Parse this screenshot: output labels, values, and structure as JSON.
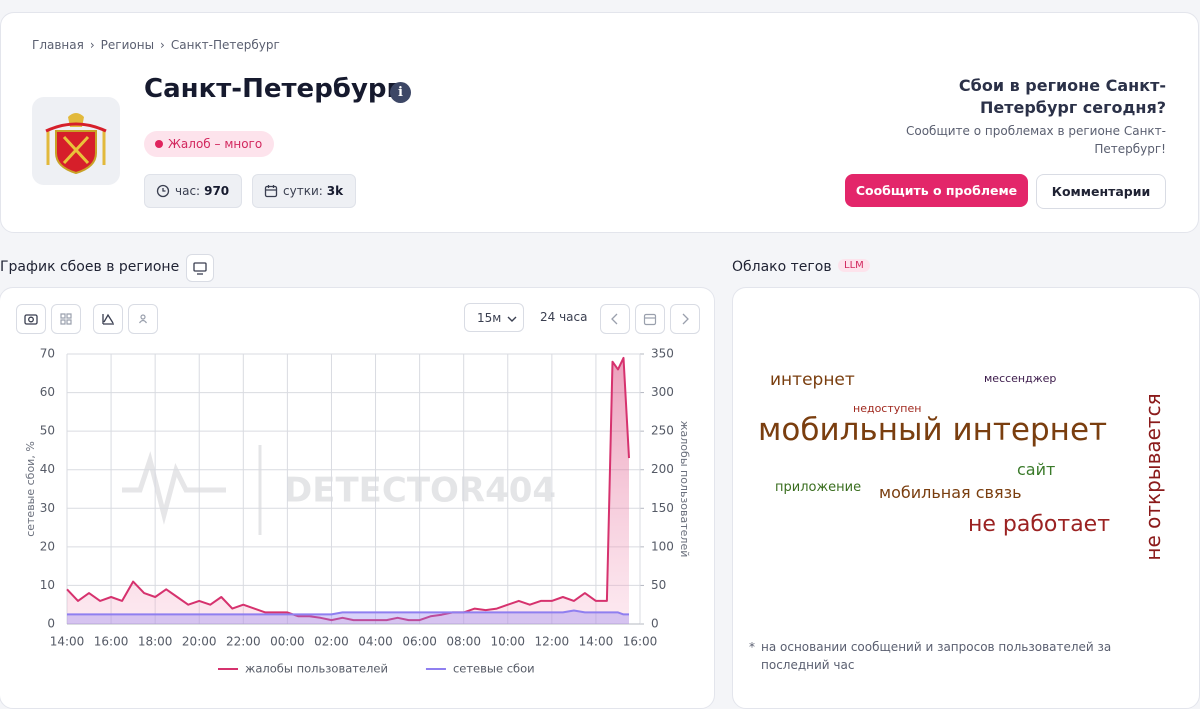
{
  "breadcrumbs": [
    "Главная",
    "Регионы",
    "Санкт-Петербург"
  ],
  "header": {
    "title": "Санкт-Петербург",
    "status": "Жалоб – много",
    "stats": [
      {
        "label": "час:",
        "value": "970"
      },
      {
        "label": "сутки:",
        "value": "3k"
      }
    ]
  },
  "cta": {
    "title": "Сбои в регионе Санкт-Петербург сегодня?",
    "text": "Сообщите о проблемах в регионе Санкт-Петербург!",
    "buttons": [
      "Сообщить о проблеме",
      "Комментарии"
    ]
  },
  "chart_section": {
    "title": "График сбоев в регионе",
    "interval": "15м",
    "range": "24 часа",
    "watermark": "DETECTOR404"
  },
  "chart_data": {
    "type": "line",
    "x": [
      0,
      0.5,
      1,
      1.5,
      2,
      2.5,
      3,
      3.5,
      4,
      4.5,
      5,
      5.5,
      6,
      6.5,
      7,
      7.5,
      8,
      8.5,
      9,
      9.5,
      10,
      10.5,
      11,
      11.5,
      12,
      12.5,
      13,
      13.5,
      14,
      14.5,
      15,
      15.5,
      16,
      16.5,
      17,
      17.5,
      18,
      18.5,
      19,
      19.5,
      20,
      20.5,
      21,
      21.5,
      22,
      22.5,
      23,
      23.5,
      24,
      24.5,
      24.75,
      25,
      25.25,
      25.5
    ],
    "xlim": [
      0,
      26
    ],
    "xticks": [
      {
        "value": 0,
        "label": "14:00"
      },
      {
        "value": 2,
        "label": "16:00"
      },
      {
        "value": 4,
        "label": "18:00"
      },
      {
        "value": 6,
        "label": "20:00"
      },
      {
        "value": 8,
        "label": "22:00"
      },
      {
        "value": 10,
        "label": "00:00"
      },
      {
        "value": 12,
        "label": "02:00"
      },
      {
        "value": 14,
        "label": "04:00"
      },
      {
        "value": 16,
        "label": "06:00"
      },
      {
        "value": 18,
        "label": "08:00"
      },
      {
        "value": 20,
        "label": "10:00"
      },
      {
        "value": 22,
        "label": "12:00"
      },
      {
        "value": 24,
        "label": "14:00"
      },
      {
        "value": 26,
        "label": "16:00"
      }
    ],
    "ylabel": "сетевые сбои, %",
    "ylim": [
      0,
      70
    ],
    "yticks": [
      0,
      10,
      20,
      30,
      40,
      50,
      60,
      70
    ],
    "y2label": "жалобы пользователей",
    "y2lim": [
      0,
      350
    ],
    "y2ticks": [
      0,
      50,
      100,
      150,
      200,
      250,
      300,
      350
    ],
    "grid": true,
    "legend": "bottom",
    "series": [
      {
        "name": "жалобы пользователей",
        "color": "#d6326e",
        "axis": "y2",
        "values": [
          45,
          30,
          40,
          30,
          35,
          30,
          55,
          40,
          35,
          45,
          35,
          25,
          30,
          25,
          35,
          20,
          25,
          20,
          15,
          15,
          15,
          10,
          10,
          8,
          5,
          8,
          5,
          5,
          5,
          5,
          8,
          5,
          5,
          10,
          12,
          15,
          15,
          20,
          18,
          20,
          25,
          30,
          25,
          30,
          30,
          35,
          30,
          40,
          30,
          30,
          340,
          330,
          345,
          215
        ]
      },
      {
        "name": "сетевые сбои",
        "color": "#8f7ff0",
        "values": [
          2.5,
          2.5,
          2.5,
          2.5,
          2.5,
          2.5,
          2.5,
          2.5,
          2.5,
          2.5,
          2.5,
          2.5,
          2.5,
          2.5,
          2.5,
          2.5,
          2.5,
          2.5,
          2.5,
          2.5,
          2.5,
          2.5,
          2.5,
          2.5,
          2.5,
          3,
          3,
          3,
          3,
          3,
          3,
          3,
          3,
          3,
          3,
          3,
          3,
          3,
          3,
          3,
          3,
          3,
          3,
          3,
          3,
          3,
          3.5,
          3,
          3,
          3,
          3,
          3,
          2.5,
          2.5
        ]
      }
    ]
  },
  "tag_cloud": {
    "title": "Облако тегов",
    "badge": "LLM",
    "tags": [
      {
        "text": "интернет",
        "color": "#7a3e0f"
      },
      {
        "text": "мессенджер",
        "color": "#3b1a4a"
      },
      {
        "text": "недоступен",
        "color": "#a0281e"
      },
      {
        "text": "мобильный интернет",
        "color": "#7a3e0f"
      },
      {
        "text": "сайт",
        "color": "#3a7a2a"
      },
      {
        "text": "приложение",
        "color": "#3a6e1f"
      },
      {
        "text": "мобильная связь",
        "color": "#7a3e0f"
      },
      {
        "text": "не работает",
        "color": "#9b2222"
      },
      {
        "text": "не открывается",
        "color": "#8b1a1a"
      }
    ],
    "footnote": "на основании сообщений и запросов пользователей за последний час"
  }
}
